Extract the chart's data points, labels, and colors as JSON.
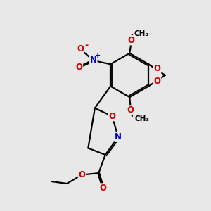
{
  "bg_color": "#e8e8e8",
  "bond_color": "#000000",
  "bond_width": 1.6,
  "atom_colors": {
    "O": "#cc0000",
    "N": "#0000cc",
    "C": "#000000"
  },
  "font_size_atom": 8.5,
  "font_size_ch3": 7.5
}
